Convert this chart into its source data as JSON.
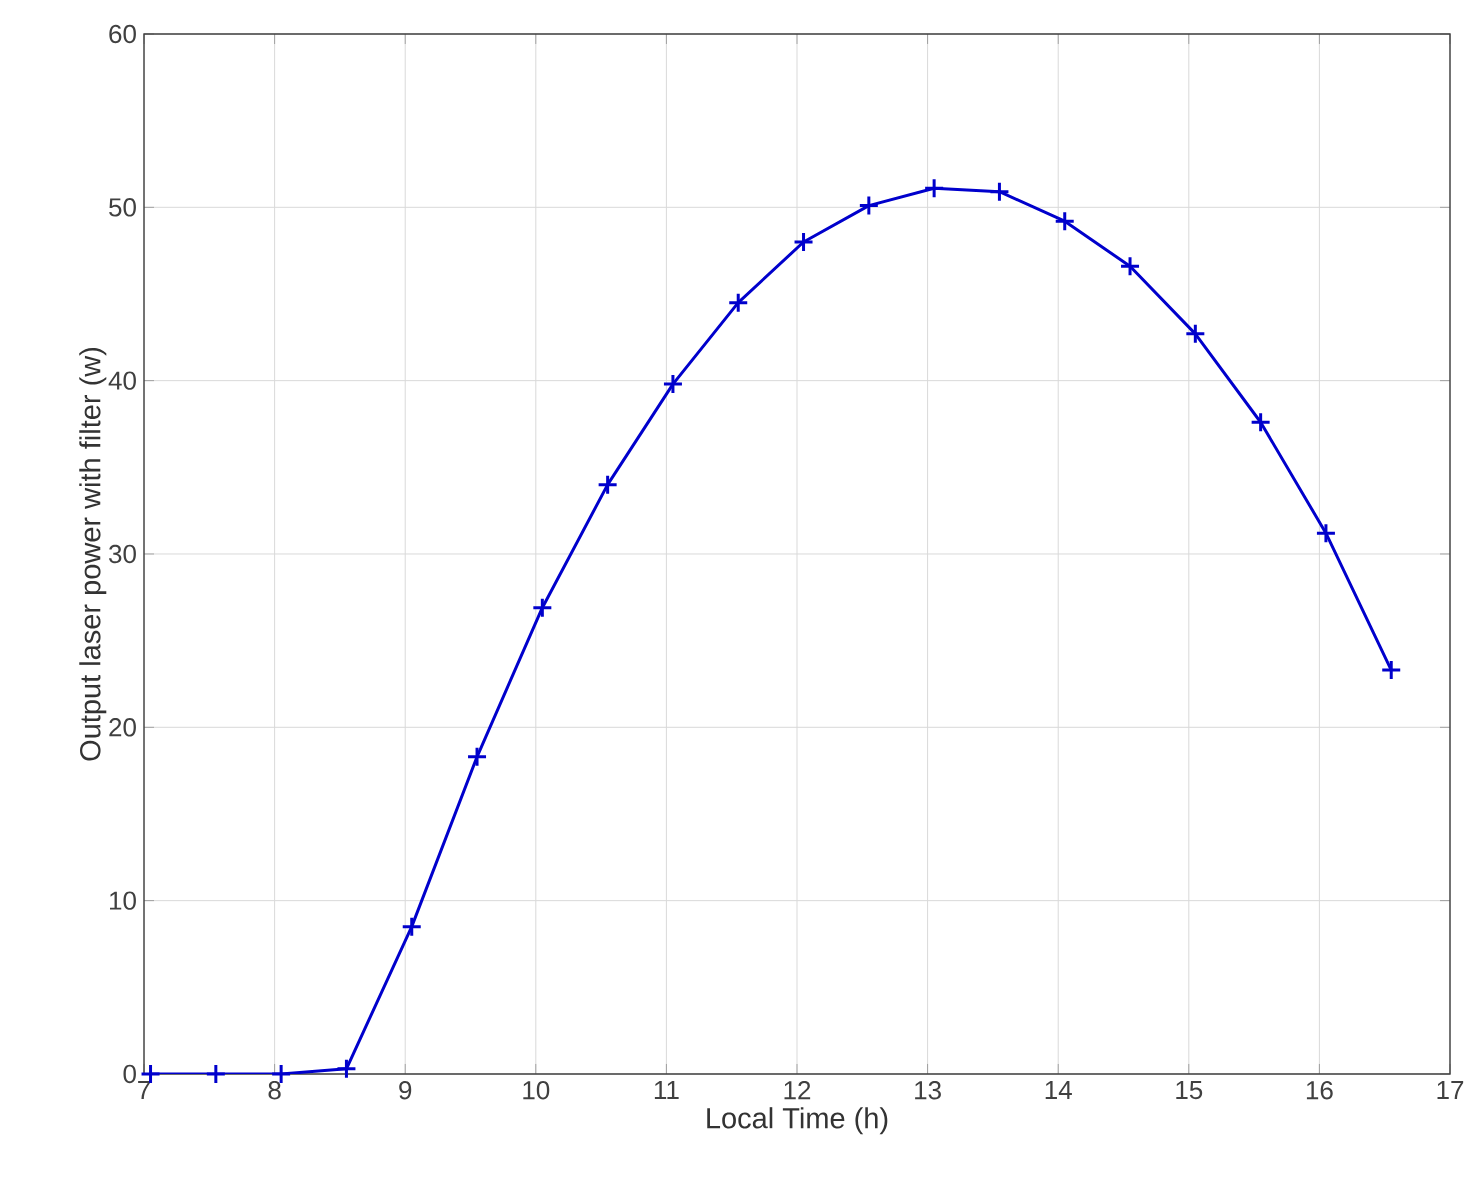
{
  "chart_data": {
    "type": "line",
    "xlabel": "Local Time (h)",
    "ylabel": "Output laser power with filter (w)",
    "xlim": [
      7,
      17
    ],
    "ylim": [
      0,
      60
    ],
    "xticks": [
      7,
      8,
      9,
      10,
      11,
      12,
      13,
      14,
      15,
      16,
      17
    ],
    "yticks": [
      0,
      10,
      20,
      30,
      40,
      50,
      60
    ],
    "grid": true,
    "marker": "cross",
    "line_style": "solid",
    "series": [
      {
        "color": "#0000cc",
        "x": [
          7.05,
          7.55,
          8.05,
          8.55,
          9.05,
          9.55,
          10.05,
          10.55,
          11.05,
          11.55,
          12.05,
          12.55,
          13.05,
          13.55,
          14.05,
          14.55,
          15.05,
          15.55,
          16.05,
          16.55
        ],
        "values": [
          0,
          0,
          0,
          0.3,
          8.5,
          18.3,
          26.9,
          34.0,
          39.8,
          44.5,
          48.0,
          50.1,
          51.1,
          50.9,
          49.2,
          46.6,
          42.7,
          37.6,
          31.2,
          23.3
        ]
      }
    ]
  }
}
